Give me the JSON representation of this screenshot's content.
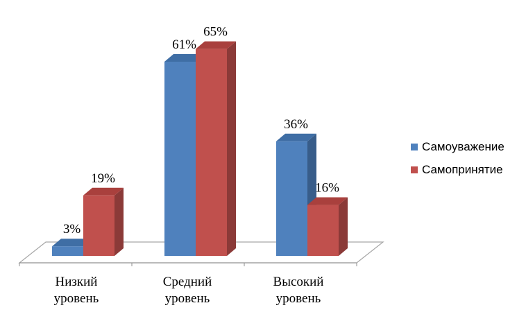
{
  "chart_data": {
    "type": "bar",
    "style": "3d-clustered-column",
    "categories": [
      [
        "Низкий",
        "уровень"
      ],
      [
        "Средний",
        "уровень"
      ],
      [
        "Высокий",
        "уровень"
      ]
    ],
    "series": [
      {
        "name": "Самоуважение",
        "values": [
          3,
          61,
          36
        ],
        "labels": [
          "3%",
          "61%",
          "36%"
        ],
        "color": "#4f81bd",
        "side_color": "#385d8a",
        "top_color": "#3f6ea5"
      },
      {
        "name": "Самопринятие",
        "values": [
          19,
          65,
          16
        ],
        "labels": [
          "19%",
          "65%",
          "16%"
        ],
        "color": "#c0504d",
        "side_color": "#8b3a38",
        "top_color": "#a9403d"
      }
    ],
    "ylim": [
      0,
      65
    ],
    "grid": false,
    "legend_position": "right"
  }
}
